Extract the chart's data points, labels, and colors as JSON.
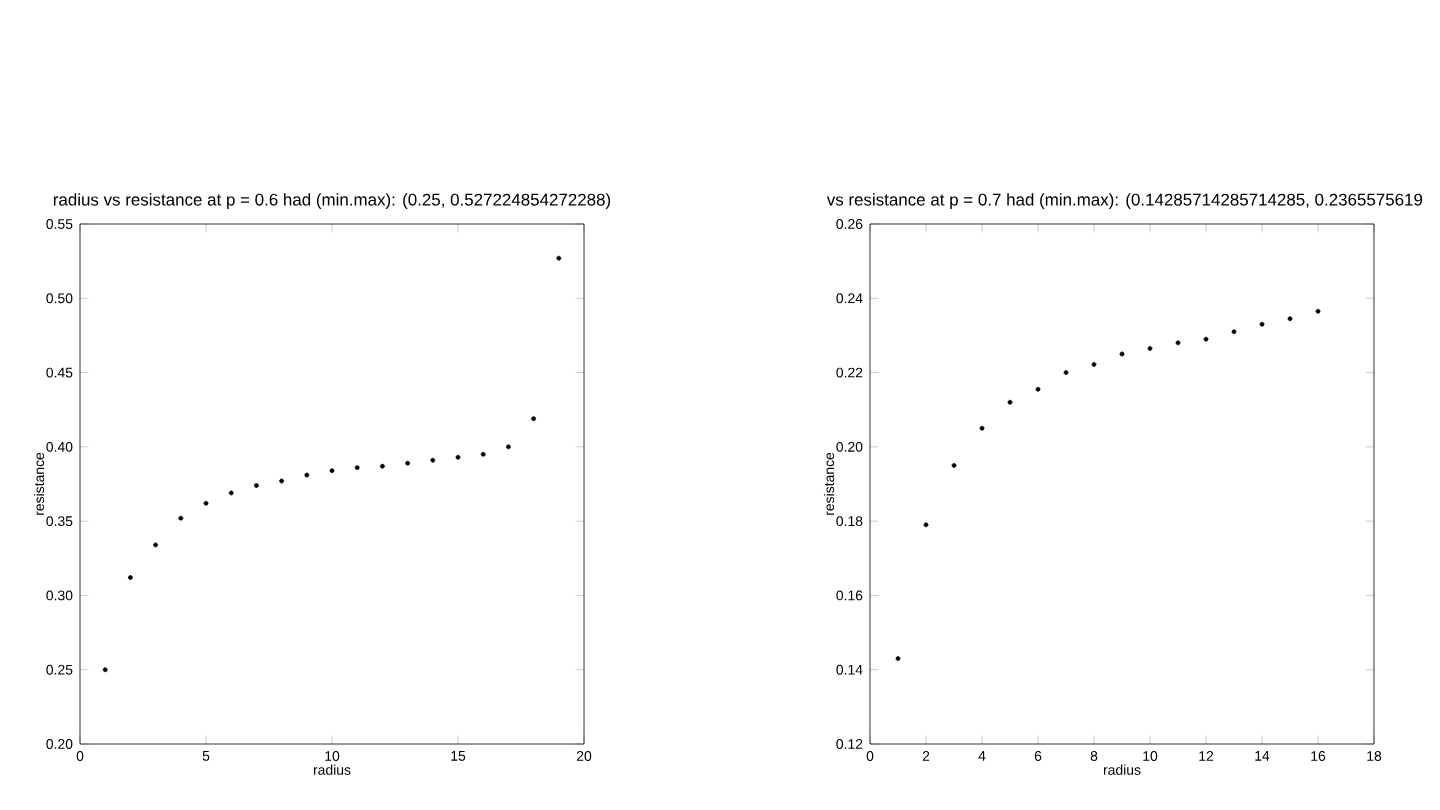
{
  "chart_data": [
    {
      "type": "scatter",
      "title": "radius vs resistance at p = 0.6 had (min.max): (0.25, 0.527224854272288)",
      "xlabel": "radius",
      "ylabel": "resistance",
      "marker": "circle",
      "color": "#000000",
      "x": [
        1,
        2,
        3,
        4,
        5,
        6,
        7,
        8,
        9,
        10,
        11,
        12,
        13,
        14,
        15,
        16,
        17,
        18,
        19
      ],
      "values": [
        0.25,
        0.312,
        0.334,
        0.352,
        0.362,
        0.369,
        0.374,
        0.377,
        0.381,
        0.384,
        0.386,
        0.387,
        0.389,
        0.391,
        0.393,
        0.395,
        0.4,
        0.419,
        0.527
      ],
      "xlim": [
        0,
        20
      ],
      "ylim": [
        0.2,
        0.55
      ],
      "xticks": [
        0,
        5,
        10,
        15,
        20
      ],
      "yticks": [
        {
          "value": 0.2,
          "label": "0.20"
        },
        {
          "value": 0.25,
          "label": "0.25"
        },
        {
          "value": 0.3,
          "label": "0.30"
        },
        {
          "value": 0.35,
          "label": "0.35"
        },
        {
          "value": 0.4,
          "label": "0.40"
        },
        {
          "value": 0.45,
          "label": "0.45"
        },
        {
          "value": 0.5,
          "label": "0.50"
        },
        {
          "value": 0.55,
          "label": "0.55"
        }
      ]
    },
    {
      "type": "scatter",
      "title": "vs resistance at p = 0.7 had (min.max): (0.14285714285714285, 0.2365575619",
      "xlabel": "radius",
      "ylabel": "resistance",
      "marker": "circle",
      "color": "#000000",
      "x": [
        1,
        2,
        3,
        4,
        5,
        6,
        7,
        8,
        9,
        10,
        11,
        12,
        13,
        14,
        15,
        16
      ],
      "values": [
        0.143,
        0.179,
        0.195,
        0.205,
        0.212,
        0.2155,
        0.22,
        0.2222,
        0.225,
        0.2265,
        0.228,
        0.229,
        0.231,
        0.233,
        0.2345,
        0.2365
      ],
      "xlim": [
        0,
        18
      ],
      "ylim": [
        0.12,
        0.26
      ],
      "xticks": [
        0,
        2,
        4,
        6,
        8,
        10,
        12,
        14,
        16,
        18
      ],
      "yticks": [
        {
          "value": 0.12,
          "label": "0.12"
        },
        {
          "value": 0.14,
          "label": "0.14"
        },
        {
          "value": 0.16,
          "label": "0.16"
        },
        {
          "value": 0.18,
          "label": "0.18"
        },
        {
          "value": 0.2,
          "label": "0.20"
        },
        {
          "value": 0.22,
          "label": "0.22"
        },
        {
          "value": 0.24,
          "label": "0.24"
        },
        {
          "value": 0.26,
          "label": "0.26"
        }
      ]
    }
  ]
}
